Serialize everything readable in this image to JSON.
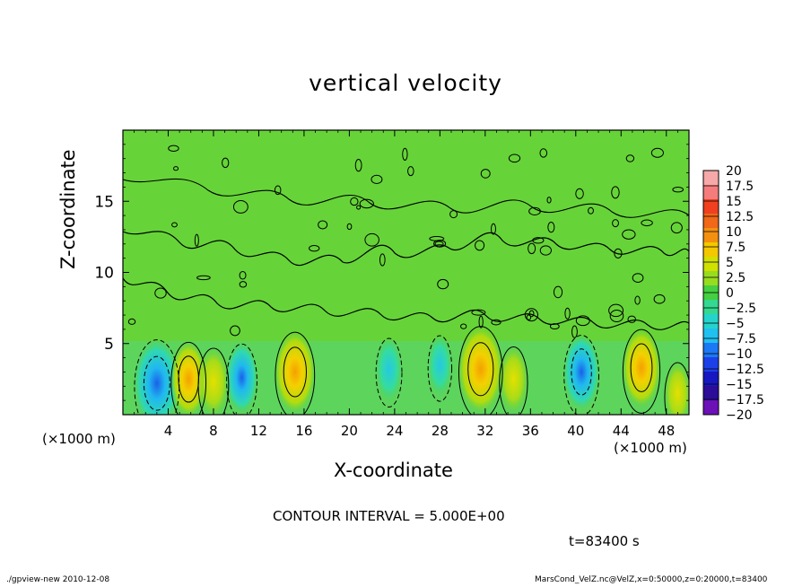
{
  "chart_data": {
    "type": "heatmap",
    "title": "vertical velocity",
    "xlabel": "X-coordinate",
    "ylabel": "Z-coordinate",
    "x_unit_label": "(×1000 m)",
    "x_ticks": [
      4,
      8,
      12,
      16,
      20,
      24,
      28,
      32,
      36,
      40,
      44,
      48
    ],
    "y_ticks": [
      5,
      10,
      15
    ],
    "xlim": [
      0,
      50
    ],
    "ylim": [
      0,
      20
    ],
    "contour_interval_text": "CONTOUR INTERVAL = 5.000E+00",
    "colorbar": {
      "labels": [
        "20",
        "17.5",
        "15",
        "12.5",
        "10",
        "7.5",
        "5",
        "2.5",
        "0",
        "-2.5",
        "-5",
        "-7.5",
        "-10",
        "-12.5",
        "-15",
        "-17.5",
        "-20"
      ],
      "colors": [
        "#f7a8a8",
        "#f47c7c",
        "#f04020",
        "#f06818",
        "#f49010",
        "#f4c800",
        "#d0e000",
        "#98dc20",
        "#44d040",
        "#34d890",
        "#24d4cc",
        "#20c0f0",
        "#1c78f4",
        "#1c40e8",
        "#1818c0",
        "#2c0c98",
        "#6c10b8"
      ]
    },
    "features": [
      {
        "x": 3.0,
        "z": 2.2,
        "w": -12.5
      },
      {
        "x": 5.8,
        "z": 2.5,
        "w": 8
      },
      {
        "x": 8.0,
        "z": 2.3,
        "w": 6
      },
      {
        "x": 10.5,
        "z": 2.6,
        "w": -6
      },
      {
        "x": 15.2,
        "z": 3.0,
        "w": 10
      },
      {
        "x": 23.5,
        "z": 3.2,
        "w": -4
      },
      {
        "x": 28.0,
        "z": 3.5,
        "w": -3
      },
      {
        "x": 31.6,
        "z": 3.2,
        "w": 12
      },
      {
        "x": 34.5,
        "z": 2.5,
        "w": 5
      },
      {
        "x": 40.5,
        "z": 3.0,
        "w": -8
      },
      {
        "x": 45.8,
        "z": 3.3,
        "w": 9
      },
      {
        "x": 49.0,
        "z": 1.5,
        "w": 4
      }
    ],
    "grid": false
  },
  "footer": {
    "timestamp": "t=83400 s",
    "left": "./gpview-new  2010-12-08",
    "right": "MarsCond_VelZ.nc@VelZ,x=0:50000,z=0:20000,t=83400"
  }
}
